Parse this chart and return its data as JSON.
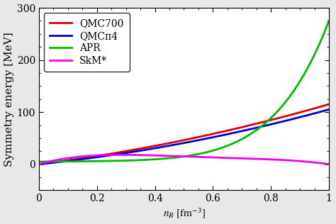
{
  "title": "",
  "xlabel": "n_{B} [fm^{-3}]",
  "ylabel": "Symmetry energy [MeV]",
  "xlim": [
    0,
    1.0
  ],
  "ylim": [
    -50,
    300
  ],
  "yticks": [
    0,
    100,
    200,
    300
  ],
  "xticks": [
    0,
    0.2,
    0.4,
    0.6,
    0.8,
    1.0
  ],
  "curves": {
    "QMC700": {
      "color": "#dd0000",
      "label": "QMC700",
      "coeffs": [
        0.0,
        70.0,
        45.0
      ]
    },
    "QMCpi4": {
      "color": "#0000cc",
      "label": "QMCπ4",
      "coeffs": [
        0.0,
        58.0,
        47.0
      ]
    },
    "APR": {
      "color": "#00bb00",
      "label": "APR",
      "coeffs_apr": [
        5.0,
        2.0,
        8.0,
        60.0,
        200.0
      ]
    },
    "SkMstar": {
      "color": "#ee00ee",
      "label": "SkM*",
      "coeffs_skm": [
        160.0,
        -480.0,
        560.0,
        -240.0
      ]
    }
  },
  "legend_fontsize": 10,
  "axis_fontsize": 11,
  "tick_fontsize": 10,
  "linewidth": 2.0,
  "background_color": "#ffffff",
  "fig_background": "#e8e8e8"
}
